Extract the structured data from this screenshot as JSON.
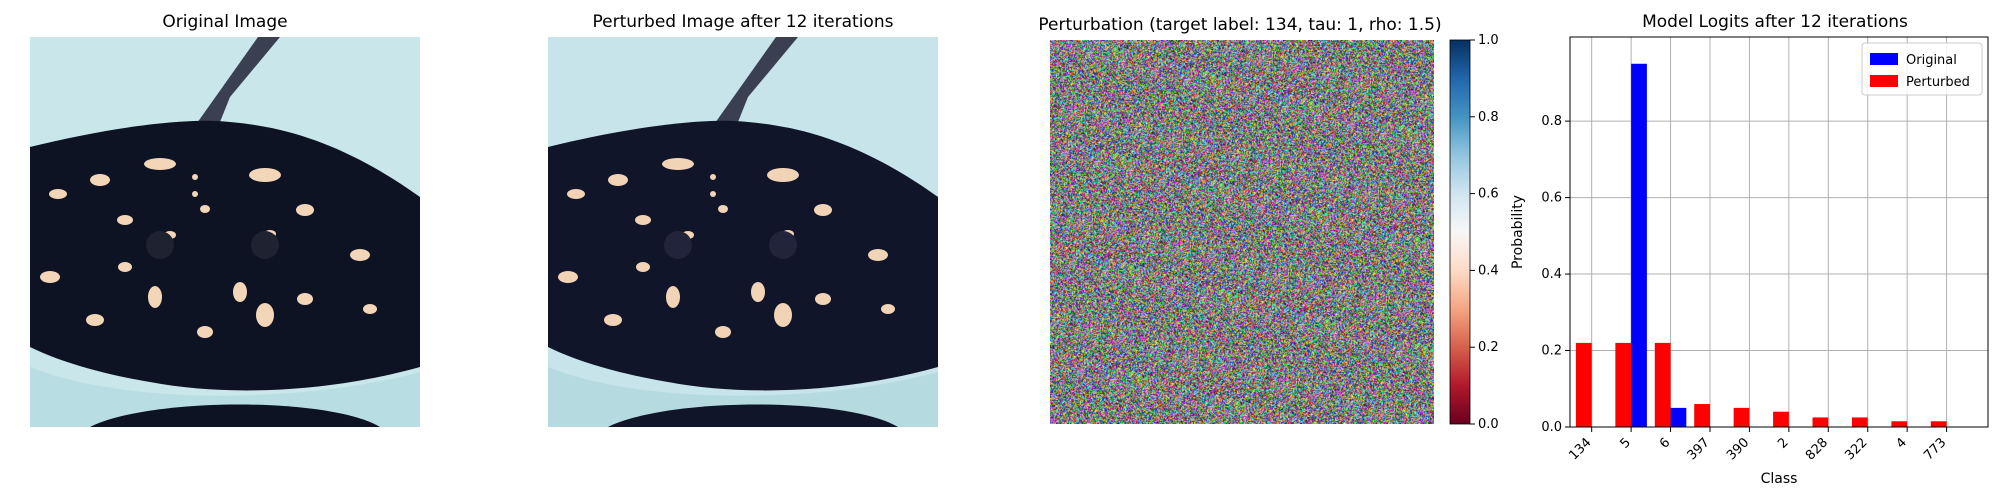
{
  "panels": {
    "original_title": "Original Image",
    "perturbed_title": "Perturbed Image after 12 iterations",
    "perturbation_title": "Perturbation (target label: 134, tau: 1, rho: 1.5)",
    "logits_title": "Model Logits after 12 iterations"
  },
  "colorbar": {
    "range": [
      0.0,
      1.0
    ],
    "ticks": [
      "0.0",
      "0.2",
      "0.4",
      "0.6",
      "0.8",
      "1.0"
    ],
    "colormap": "RdBu"
  },
  "chart_data": {
    "type": "bar",
    "title": "Model Logits after 12 iterations",
    "xlabel": "Class",
    "ylabel": "Probability",
    "categories": [
      "134",
      "5",
      "6",
      "397",
      "390",
      "2",
      "828",
      "322",
      "4",
      "773"
    ],
    "series": [
      {
        "name": "Original",
        "color": "#0000ff",
        "values": [
          0.0,
          0.95,
          0.05,
          0.0,
          0.0,
          0.0,
          0.0,
          0.0,
          0.0,
          0.0
        ]
      },
      {
        "name": "Perturbed",
        "color": "#ff0000",
        "values": [
          0.22,
          0.22,
          0.22,
          0.06,
          0.05,
          0.04,
          0.025,
          0.025,
          0.015,
          0.015
        ]
      }
    ],
    "yticks": [
      "0.0",
      "0.2",
      "0.4",
      "0.6",
      "0.8"
    ],
    "ylim": [
      0,
      1.0
    ],
    "grid": true,
    "legend": "top-right"
  }
}
